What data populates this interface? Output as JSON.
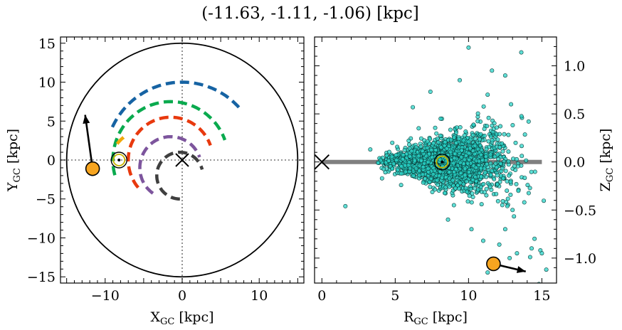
{
  "figure_title": "(-11.63, -1.11, -1.06) [kpc]",
  "chart_data": [
    {
      "type": "scatter",
      "panel": "left",
      "xlabel": "X",
      "xlabel_sub": "GC",
      "xlabel_unit": " [kpc]",
      "ylabel": "Y",
      "ylabel_sub": "GC",
      "ylabel_unit": " [kpc]",
      "xlim": [
        -15.8,
        15.8
      ],
      "ylim": [
        -15.8,
        15.8
      ],
      "xticks": [
        -10,
        0,
        10
      ],
      "xtick_labels": [
        "−10",
        "0",
        "10"
      ],
      "yticks": [
        -15,
        -10,
        -5,
        0,
        5,
        10,
        15
      ],
      "ytick_labels": [
        "−15",
        "−10",
        "−5",
        "0",
        "5",
        "10",
        "15"
      ],
      "outer_circle_radius": 15,
      "galactic_center": [
        0,
        0
      ],
      "sun": [
        -8.2,
        0
      ],
      "object": [
        -11.63,
        -1.11
      ],
      "velocity_arrow_end": [
        -12.6,
        5.8
      ],
      "arms": [
        {
          "color": "#1663a3",
          "radius": 10.0,
          "start_deg": 155,
          "end_deg": 40
        },
        {
          "color": "#0aaa4e",
          "radius": 7.5,
          "start_deg": 195,
          "end_deg": 20,
          "center": [
            -1.5,
            0
          ]
        },
        {
          "color": "#f0a80a",
          "radius": 5.0,
          "start_deg": 142,
          "end_deg": 127,
          "center": [
            -4.5,
            -1.0
          ]
        },
        {
          "color": "#e8390e",
          "radius": 5.5,
          "start_deg": 220,
          "end_deg": 20,
          "center": [
            -1.5,
            0
          ]
        },
        {
          "color": "#7d559d",
          "radius": 4.0,
          "start_deg": 235,
          "end_deg": 20,
          "center": [
            -1.5,
            -1.0
          ]
        },
        {
          "color": "#3f3f3f",
          "radius": 3.0,
          "start_deg": 270,
          "end_deg": 15,
          "center": [
            -0.3,
            -2.0
          ]
        }
      ]
    },
    {
      "type": "scatter",
      "panel": "right",
      "xlabel": "R",
      "xlabel_sub": "GC",
      "xlabel_unit": " [kpc]",
      "ylabel": "Z",
      "ylabel_sub": "GC",
      "ylabel_unit": " [kpc]",
      "xlim": [
        -0.5,
        16
      ],
      "ylim": [
        -1.26,
        1.3
      ],
      "xticks": [
        0,
        5,
        10,
        15
      ],
      "xtick_labels": [
        "0",
        "5",
        "10",
        "15"
      ],
      "yticks": [
        -1.0,
        -0.5,
        0.0,
        0.5,
        1.0
      ],
      "ytick_labels": [
        "−1.0",
        "−0.5",
        "0.0",
        "0.5",
        "1.0"
      ],
      "disk_line_x": [
        0,
        15
      ],
      "galactic_center": [
        0,
        0
      ],
      "sun": [
        8.2,
        0
      ],
      "object": [
        11.7,
        -1.06
      ],
      "velocity_arrow_end": [
        13.9,
        -1.14
      ],
      "point_color": "#2ad4c8",
      "points_count_approx": 2000,
      "scatter_outliers": [
        [
          10.0,
          1.19
        ],
        [
          13.6,
          1.14
        ],
        [
          11.6,
          0.95
        ],
        [
          9.4,
          0.85
        ],
        [
          12.5,
          0.9
        ],
        [
          1.6,
          -0.46
        ],
        [
          7.4,
          0.73
        ],
        [
          6.2,
          0.57
        ],
        [
          14.5,
          -0.8
        ],
        [
          14.9,
          -0.92
        ],
        [
          15.0,
          -0.95
        ],
        [
          14.3,
          -0.9
        ],
        [
          14.2,
          -0.99
        ],
        [
          15.3,
          -1.12
        ],
        [
          14.8,
          -1.27
        ],
        [
          11.3,
          -1.15
        ],
        [
          12.8,
          -1.0
        ],
        [
          13.3,
          -0.95
        ],
        [
          12.5,
          -0.7
        ],
        [
          13.0,
          -0.5
        ],
        [
          9.0,
          -0.45
        ],
        [
          8.6,
          -0.6
        ],
        [
          10.2,
          -0.7
        ],
        [
          11.0,
          -0.82
        ],
        [
          12.1,
          -0.86
        ],
        [
          3.3,
          0.13
        ],
        [
          4.1,
          -0.17
        ],
        [
          4.8,
          0.2
        ],
        [
          6.6,
          0.35
        ],
        [
          14.1,
          0.42
        ],
        [
          13.8,
          -0.42
        ],
        [
          12.9,
          0.6
        ],
        [
          11.3,
          0.7
        ],
        [
          8.1,
          0.45
        ],
        [
          5.4,
          -0.24
        ]
      ]
    }
  ]
}
